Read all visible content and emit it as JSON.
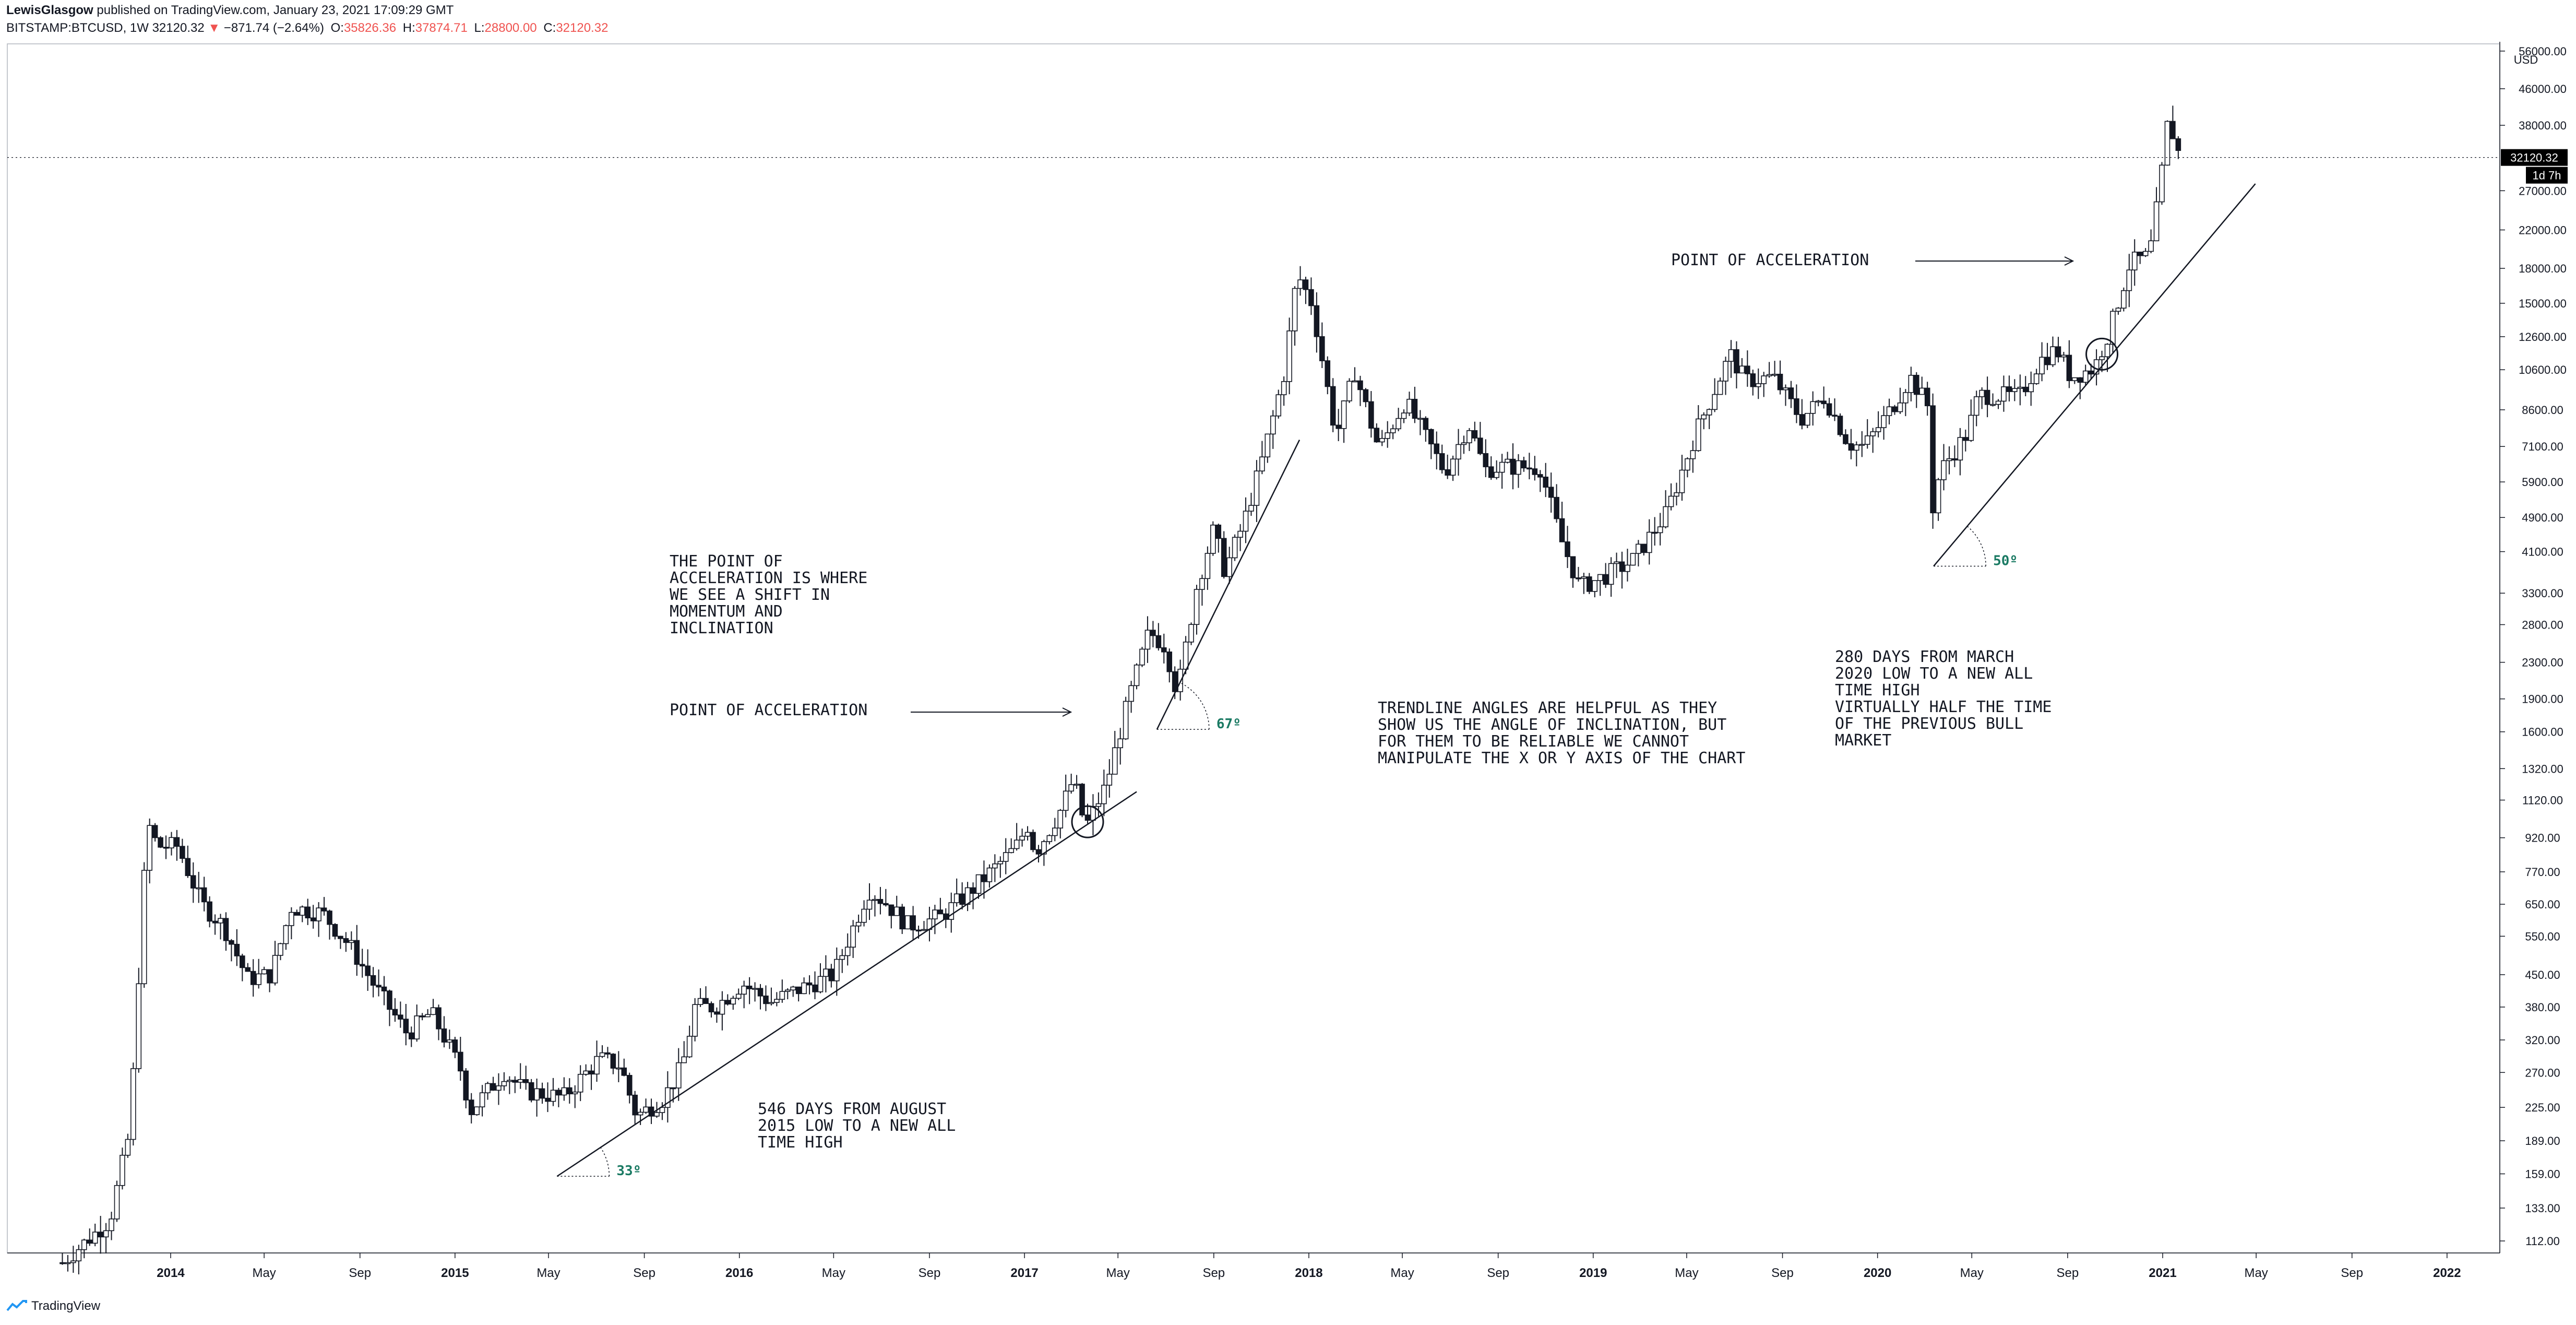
{
  "header": {
    "author": "LewisGlasgow",
    "published_text": "published on TradingView.com, January 23, 2021 17:09:29 GMT",
    "symbol": "BITSTAMP:BTCUSD, 1W",
    "last": "32120.32",
    "change": "−871.74 (−2.64%)",
    "open_label": "O:",
    "open": "35826.36",
    "high_label": "H:",
    "high": "37874.71",
    "low_label": "L:",
    "low": "28800.00",
    "close_label": "C:",
    "close": "32120.32"
  },
  "footer": {
    "brand": "TradingView"
  },
  "chart_data": {
    "type": "candlestick",
    "yscale": "log",
    "ylim": [
      100,
      60000
    ],
    "xlim": [
      "2013-08-01",
      "2022-03-15"
    ],
    "y_axis_unit": "USD",
    "y_ticks": [
      "56000.00",
      "46000.00",
      "38000.00",
      "27000.00",
      "22000.00",
      "18000.00",
      "15000.00",
      "12600.00",
      "10600.00",
      "8600.00",
      "7100.00",
      "5900.00",
      "4900.00",
      "4100.00",
      "3300.00",
      "2800.00",
      "2300.00",
      "1900.00",
      "1600.00",
      "1320.00",
      "1120.00",
      "920.00",
      "770.00",
      "650.00",
      "550.00",
      "450.00",
      "380.00",
      "320.00",
      "270.00",
      "225.00",
      "189.00",
      "159.00",
      "133.00",
      "112.00"
    ],
    "x_ticks": [
      {
        "date": "2014-01-01",
        "label": "2014",
        "bold": true
      },
      {
        "date": "2014-05-01",
        "label": "May"
      },
      {
        "date": "2014-09-01",
        "label": "Sep"
      },
      {
        "date": "2015-01-01",
        "label": "2015",
        "bold": true
      },
      {
        "date": "2015-05-01",
        "label": "May"
      },
      {
        "date": "2015-09-01",
        "label": "Sep"
      },
      {
        "date": "2016-01-01",
        "label": "2016",
        "bold": true
      },
      {
        "date": "2016-05-01",
        "label": "May"
      },
      {
        "date": "2016-09-01",
        "label": "Sep"
      },
      {
        "date": "2017-01-01",
        "label": "2017",
        "bold": true
      },
      {
        "date": "2017-05-01",
        "label": "May"
      },
      {
        "date": "2017-09-01",
        "label": "Sep"
      },
      {
        "date": "2018-01-01",
        "label": "2018",
        "bold": true
      },
      {
        "date": "2018-05-01",
        "label": "May"
      },
      {
        "date": "2018-09-01",
        "label": "Sep"
      },
      {
        "date": "2019-01-01",
        "label": "2019",
        "bold": true
      },
      {
        "date": "2019-05-01",
        "label": "May"
      },
      {
        "date": "2019-09-01",
        "label": "Sep"
      },
      {
        "date": "2020-01-01",
        "label": "2020",
        "bold": true
      },
      {
        "date": "2020-05-01",
        "label": "May"
      },
      {
        "date": "2020-09-01",
        "label": "Sep"
      },
      {
        "date": "2021-01-01",
        "label": "2021",
        "bold": true
      },
      {
        "date": "2021-05-01",
        "label": "May"
      },
      {
        "date": "2021-09-01",
        "label": "Sep"
      },
      {
        "date": "2022-01-01",
        "label": "2022",
        "bold": true
      }
    ],
    "price_line": {
      "value": 32120.32,
      "label": "32120.32",
      "countdown": "1d 7h"
    },
    "anchors": [
      [
        "2013-08-15",
        100
      ],
      [
        "2013-10-15",
        125
      ],
      [
        "2013-11-10",
        200
      ],
      [
        "2013-11-25",
        600
      ],
      [
        "2013-12-02",
        1000
      ],
      [
        "2013-12-15",
        880
      ],
      [
        "2014-01-10",
        880
      ],
      [
        "2014-02-10",
        650
      ],
      [
        "2014-03-10",
        580
      ],
      [
        "2014-04-10",
        440
      ],
      [
        "2014-05-10",
        450
      ],
      [
        "2014-06-05",
        640
      ],
      [
        "2014-07-15",
        620
      ],
      [
        "2014-08-20",
        520
      ],
      [
        "2014-09-25",
        410
      ],
      [
        "2014-11-01",
        330
      ],
      [
        "2014-12-01",
        370
      ],
      [
        "2014-12-20",
        320
      ],
      [
        "2015-01-10",
        270
      ],
      [
        "2015-01-20",
        220
      ],
      [
        "2015-03-05",
        270
      ],
      [
        "2015-04-01",
        245
      ],
      [
        "2015-05-20",
        237
      ],
      [
        "2015-07-05",
        290
      ],
      [
        "2015-08-01",
        280
      ],
      [
        "2015-08-22",
        215
      ],
      [
        "2015-09-25",
        235
      ],
      [
        "2015-10-20",
        280
      ],
      [
        "2015-11-05",
        380
      ],
      [
        "2015-12-01",
        380
      ],
      [
        "2016-01-05",
        430
      ],
      [
        "2016-02-10",
        390
      ],
      [
        "2016-03-15",
        415
      ],
      [
        "2016-05-01",
        450
      ],
      [
        "2016-06-15",
        700
      ],
      [
        "2016-07-05",
        660
      ],
      [
        "2016-08-05",
        580
      ],
      [
        "2016-09-15",
        608
      ],
      [
        "2016-10-25",
        700
      ],
      [
        "2016-12-20",
        870
      ],
      [
        "2017-01-05",
        980
      ],
      [
        "2017-01-15",
        850
      ],
      [
        "2017-02-15",
        1050
      ],
      [
        "2017-03-05",
        1250
      ],
      [
        "2017-03-20",
        970
      ],
      [
        "2017-04-15",
        1200
      ],
      [
        "2017-05-15",
        1900
      ],
      [
        "2017-06-10",
        2700
      ],
      [
        "2017-07-01",
        2500
      ],
      [
        "2017-07-16",
        1950
      ],
      [
        "2017-08-10",
        3400
      ],
      [
        "2017-09-01",
        4600
      ],
      [
        "2017-09-15",
        3700
      ],
      [
        "2017-10-10",
        4800
      ],
      [
        "2017-11-01",
        6500
      ],
      [
        "2017-12-01",
        10500
      ],
      [
        "2017-12-17",
        17500
      ],
      [
        "2018-01-05",
        15000
      ],
      [
        "2018-02-05",
        7500
      ],
      [
        "2018-03-01",
        10500
      ],
      [
        "2018-04-01",
        7000
      ],
      [
        "2018-05-05",
        9000
      ],
      [
        "2018-06-25",
        6200
      ],
      [
        "2018-07-25",
        8000
      ],
      [
        "2018-08-15",
        6300
      ],
      [
        "2018-09-10",
        6400
      ],
      [
        "2018-10-25",
        6350
      ],
      [
        "2018-11-20",
        4400
      ],
      [
        "2018-12-15",
        3400
      ],
      [
        "2019-01-15",
        3600
      ],
      [
        "2019-02-20",
        3900
      ],
      [
        "2019-04-05",
        5000
      ],
      [
        "2019-05-15",
        7800
      ],
      [
        "2019-06-26",
        11500
      ],
      [
        "2019-07-15",
        10000
      ],
      [
        "2019-08-20",
        10200
      ],
      [
        "2019-09-25",
        8200
      ],
      [
        "2019-10-25",
        9200
      ],
      [
        "2019-11-25",
        7200
      ],
      [
        "2019-12-15",
        7100
      ],
      [
        "2020-01-20",
        8700
      ],
      [
        "2020-02-12",
        10200
      ],
      [
        "2020-03-05",
        8800
      ],
      [
        "2020-03-13",
        4800
      ],
      [
        "2020-03-20",
        6200
      ],
      [
        "2020-04-25",
        7600
      ],
      [
        "2020-05-10",
        9300
      ],
      [
        "2020-07-01",
        9200
      ],
      [
        "2020-07-27",
        11100
      ],
      [
        "2020-08-18",
        11800
      ],
      [
        "2020-09-05",
        10200
      ],
      [
        "2020-10-05",
        10700
      ],
      [
        "2020-10-25",
        13000
      ],
      [
        "2020-11-20",
        18500
      ],
      [
        "2020-12-15",
        19200
      ],
      [
        "2020-12-28",
        27000
      ],
      [
        "2021-01-08",
        39000
      ],
      [
        "2021-01-15",
        36000
      ],
      [
        "2021-01-23",
        32120
      ]
    ],
    "annotations": [
      {
        "text": "THE POINT OF\nACCELERATION IS WHERE\nWE SEE A SHIFT IN\nMOMENTUM AND\nINCLINATION"
      },
      {
        "text": "POINT OF ACCELERATION"
      },
      {
        "text": "POINT OF ACCELERATION"
      },
      {
        "text": "TRENDLINE ANGLES ARE HELPFUL AS THEY\nSHOW US THE ANGLE OF INCLINATION, BUT\nFOR THEM TO BE RELIABLE WE CANNOT\nMANIPULATE THE X OR Y AXIS OF THE CHART"
      },
      {
        "text": "280 DAYS FROM MARCH\n2020 LOW TO A NEW ALL\nTIME HIGH\n\nVIRTUALLY HALF THE TIME\nOF THE PREVIOUS BULL\nMARKET"
      },
      {
        "text": "546 DAYS FROM AUGUST\n2015 LOW TO A NEW ALL\nTIME HIGH"
      }
    ],
    "angle_labels": [
      "33º",
      "67º",
      "50º"
    ],
    "trendlines": [
      {
        "from": [
          "2015-05-12",
          157
        ],
        "to": [
          "2017-05-25",
          1170
        ],
        "angle": "33º"
      },
      {
        "from": [
          "2017-06-20",
          1620
        ],
        "to": [
          "2017-12-20",
          7350
        ],
        "angle": "67º"
      },
      {
        "from": [
          "2020-03-13",
          3800
        ],
        "to": [
          "2021-04-30",
          28000
        ],
        "angle": "50º"
      }
    ],
    "colors": {
      "up": "#ffffff",
      "down": "#131722",
      "wick": "#131722",
      "angle_text": "#1a7a63",
      "price_tag": "#000000"
    }
  }
}
